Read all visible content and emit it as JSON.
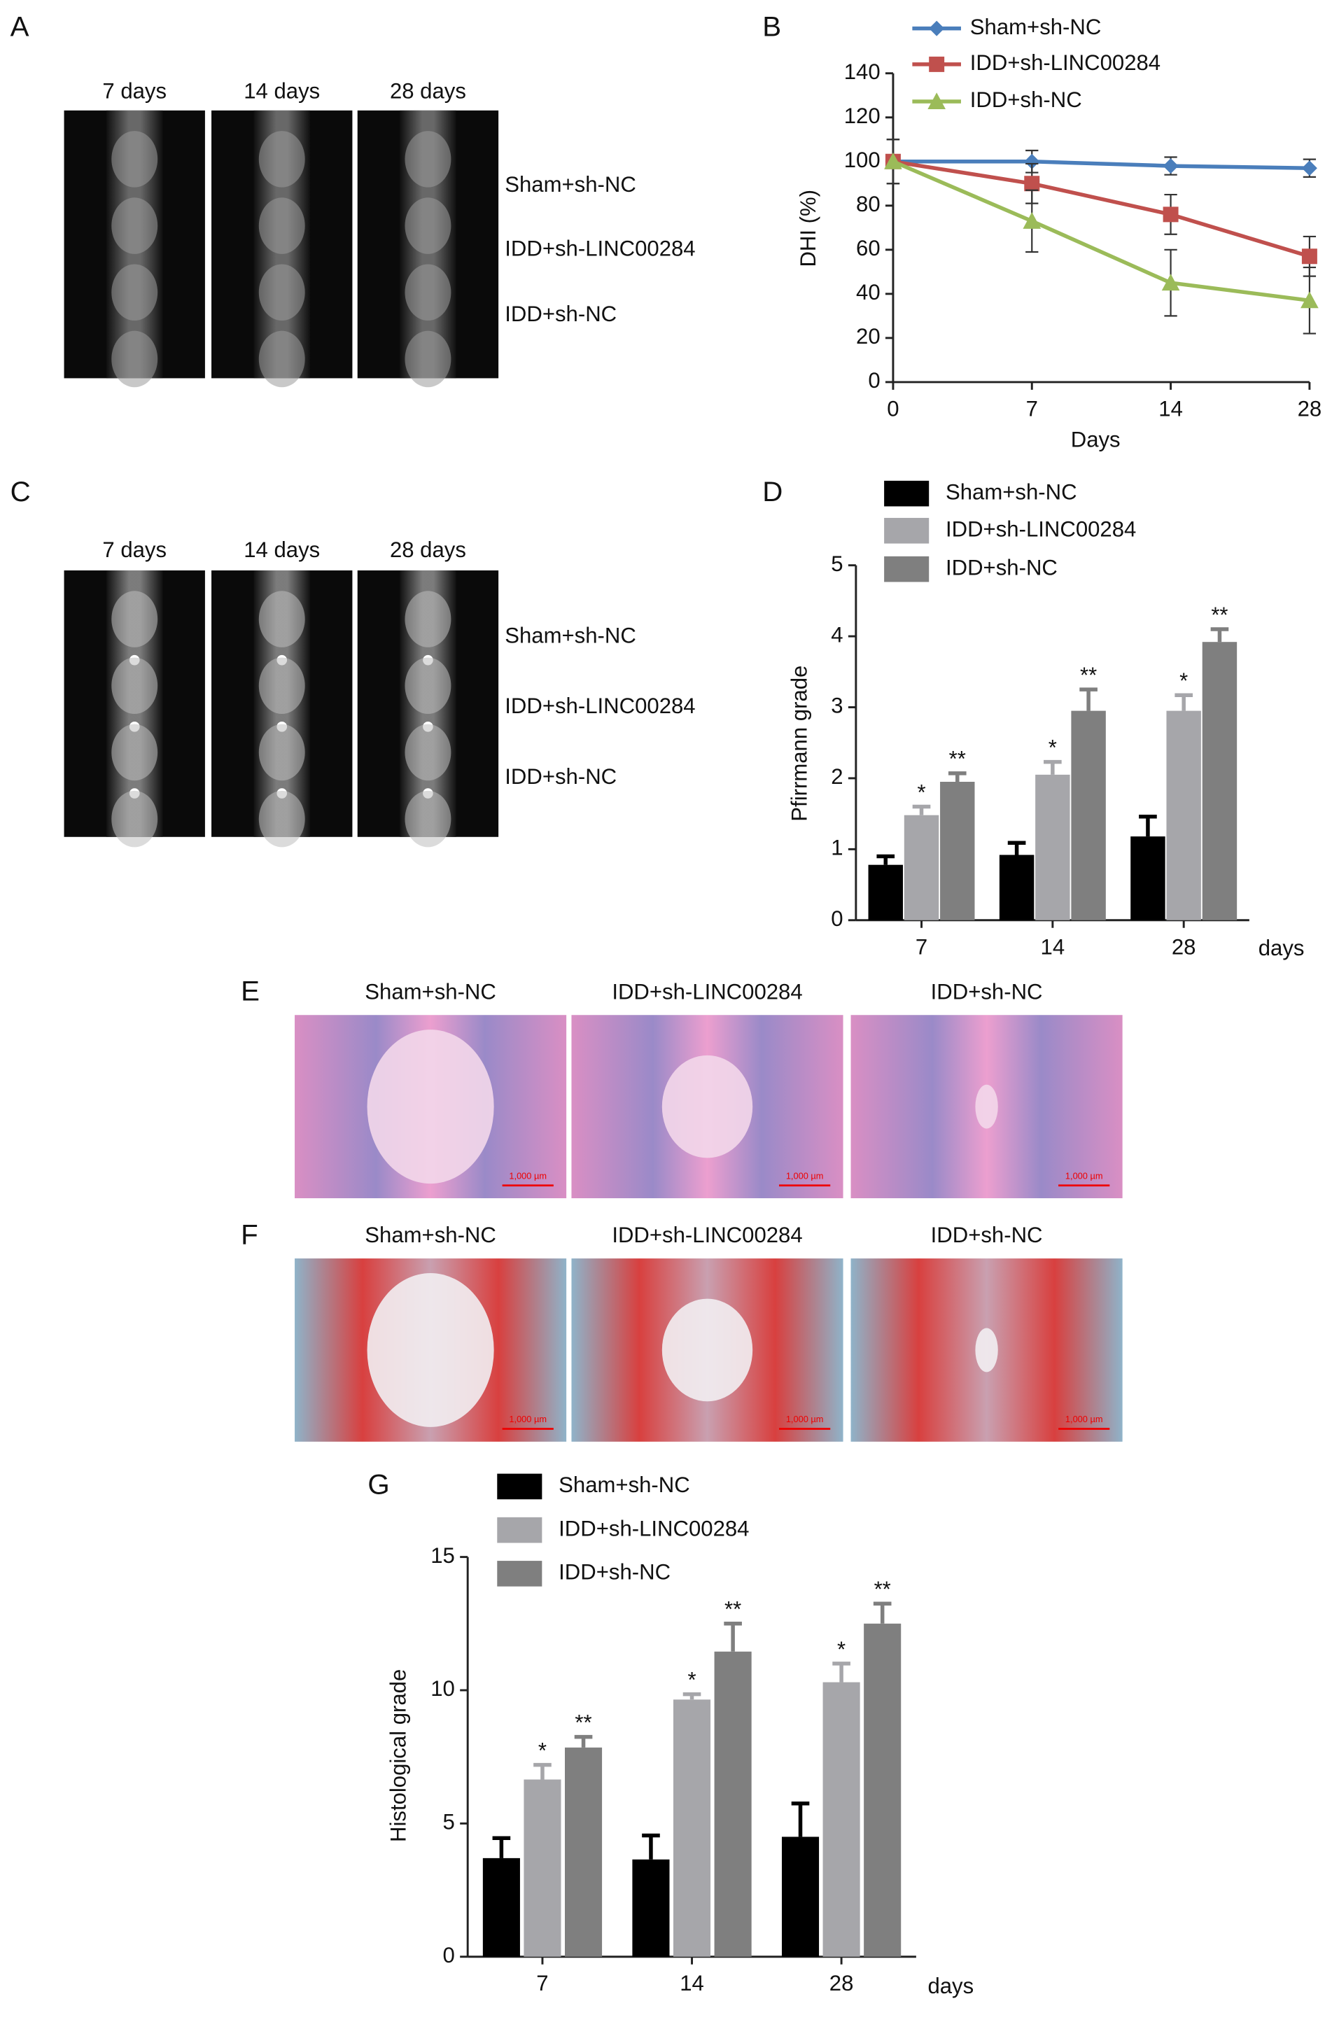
{
  "panel_labels": [
    "A",
    "B",
    "C",
    "D",
    "E",
    "F",
    "G"
  ],
  "panel_a": {
    "columns": [
      "7 days",
      "14 days",
      "28 days"
    ],
    "rows": [
      "Sham+sh-NC",
      "IDD+sh-LINC00284",
      "IDD+sh-NC"
    ]
  },
  "panel_c": {
    "columns": [
      "7 days",
      "14 days",
      "28 days"
    ],
    "rows": [
      "Sham+sh-NC",
      "IDD+sh-LINC00284",
      "IDD+sh-NC"
    ]
  },
  "panel_e": {
    "columns": [
      "Sham+sh-NC",
      "IDD+sh-LINC00284",
      "IDD+sh-NC"
    ],
    "scale_bar": "1,000 µm"
  },
  "panel_f": {
    "columns": [
      "Sham+sh-NC",
      "IDD+sh-LINC00284",
      "IDD+sh-NC"
    ],
    "scale_bar": "1,000 µm"
  },
  "chart_data": [
    {
      "type": "line",
      "xlabel": "Days",
      "ylabel": "DHI (%)",
      "categories": [
        "0",
        "7",
        "14",
        "28"
      ],
      "ylim": [
        0,
        140
      ],
      "yticks": [
        0,
        20,
        40,
        60,
        80,
        100,
        120,
        140
      ],
      "series": [
        {
          "name": "Sham+sh-NC",
          "color": "#4a7ebb",
          "marker": "diamond",
          "values": [
            100,
            100,
            98,
            97
          ],
          "errors": [
            10,
            5,
            4,
            4
          ]
        },
        {
          "name": "IDD+sh-LINC00284",
          "color": "#c0504d",
          "marker": "square",
          "values": [
            100,
            90,
            76,
            57
          ],
          "errors": [
            10,
            9,
            9,
            9
          ]
        },
        {
          "name": "IDD+sh-NC",
          "color": "#9bbb59",
          "marker": "triangle",
          "values": [
            100,
            73,
            45,
            37
          ],
          "errors": [
            10,
            14,
            15,
            15
          ]
        }
      ]
    },
    {
      "type": "bar",
      "ylabel": "Pfirrmann grade",
      "xunit": "days",
      "categories": [
        "7",
        "14",
        "28"
      ],
      "ylim": [
        0,
        5
      ],
      "yticks": [
        0,
        1,
        2,
        3,
        4,
        5
      ],
      "series": [
        {
          "name": "Sham+sh-NC",
          "color": "#000000",
          "values": [
            0.78,
            0.92,
            1.18
          ],
          "errors": [
            0.12,
            0.17,
            0.28
          ]
        },
        {
          "name": "IDD+sh-LINC00284",
          "color": "#a6a6aa",
          "values": [
            1.48,
            2.05,
            2.95
          ],
          "errors": [
            0.12,
            0.18,
            0.22
          ],
          "annotations": [
            "*",
            "*",
            "*"
          ]
        },
        {
          "name": "IDD+sh-NC",
          "color": "#7f7f7f",
          "values": [
            1.95,
            2.95,
            3.92
          ],
          "errors": [
            0.12,
            0.3,
            0.18
          ],
          "annotations": [
            "**",
            "**",
            "**"
          ]
        }
      ]
    },
    {
      "type": "bar",
      "ylabel": "Histological grade",
      "xunit": "days",
      "categories": [
        "7",
        "14",
        "28"
      ],
      "ylim": [
        0,
        15
      ],
      "yticks": [
        0,
        5,
        10,
        15
      ],
      "series": [
        {
          "name": "Sham+sh-NC",
          "color": "#000000",
          "values": [
            3.7,
            3.65,
            4.5
          ],
          "errors": [
            0.75,
            0.9,
            1.25
          ]
        },
        {
          "name": "IDD+sh-LINC00284",
          "color": "#a6a6aa",
          "values": [
            6.65,
            9.65,
            10.3
          ],
          "errors": [
            0.55,
            0.2,
            0.7
          ],
          "annotations": [
            "*",
            "*",
            "*"
          ]
        },
        {
          "name": "IDD+sh-NC",
          "color": "#7f7f7f",
          "values": [
            7.85,
            11.45,
            12.5
          ],
          "errors": [
            0.4,
            1.05,
            0.75
          ],
          "annotations": [
            "**",
            "**",
            "**"
          ]
        }
      ]
    }
  ]
}
